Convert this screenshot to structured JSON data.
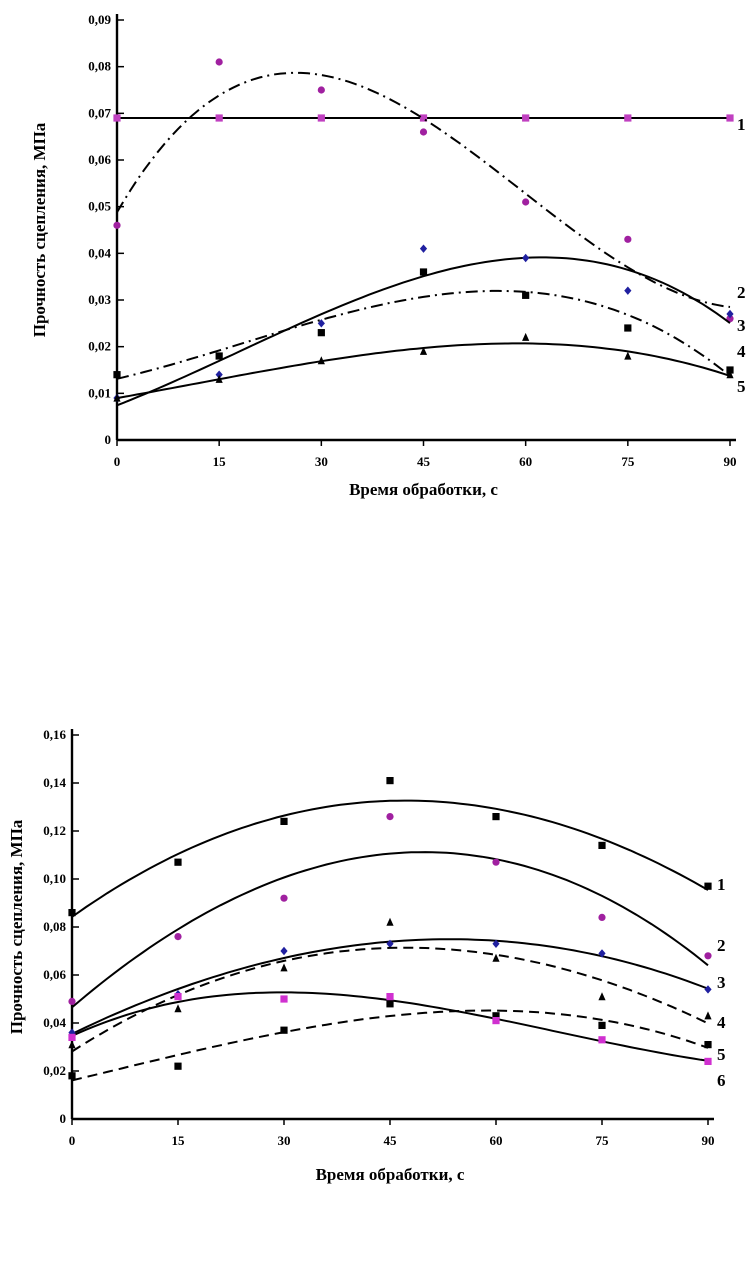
{
  "chart_data": [
    {
      "type": "scatter",
      "title": "",
      "xlabel": "Время обработки, с",
      "ylabel": "Прочность сцепления, МПа",
      "xlim": [
        0,
        90
      ],
      "ylim": [
        0,
        0.09
      ],
      "x_ticks": [
        "0",
        "15",
        "30",
        "45",
        "60",
        "75",
        "90"
      ],
      "y_ticks": [
        "0",
        "0,01",
        "0,02",
        "0,03",
        "0,04",
        "0,05",
        "0,06",
        "0,07",
        "0,08",
        "0,09"
      ],
      "grid": false,
      "x": [
        0,
        15,
        30,
        45,
        60,
        75,
        90
      ],
      "series": [
        {
          "name": "1",
          "marker": "square",
          "color": "#c040c0",
          "curve": "solid",
          "values": [
            0.069,
            0.069,
            0.069,
            0.069,
            0.069,
            0.069,
            0.069
          ]
        },
        {
          "name": "2",
          "marker": "circle",
          "color": "#a020a0",
          "curve": "dashdot",
          "values": [
            0.046,
            0.081,
            0.075,
            0.066,
            0.051,
            0.043,
            0.026
          ]
        },
        {
          "name": "3",
          "marker": "diamond",
          "color": "#2020a0",
          "curve": "solid",
          "values": [
            0.009,
            0.014,
            0.025,
            0.041,
            0.039,
            0.032,
            0.027
          ]
        },
        {
          "name": "4",
          "marker": "square",
          "color": "#000000",
          "curve": "dashdot",
          "values": [
            0.014,
            0.018,
            0.023,
            0.036,
            0.031,
            0.024,
            0.015
          ]
        },
        {
          "name": "5",
          "marker": "triangle",
          "color": "#000000",
          "curve": "solid",
          "values": [
            0.009,
            0.013,
            0.017,
            0.019,
            0.022,
            0.018,
            0.014
          ]
        }
      ]
    },
    {
      "type": "scatter",
      "title": "",
      "xlabel": "Время обработки, с",
      "ylabel": "Прочность сцепления, МПа",
      "xlim": [
        0,
        90
      ],
      "ylim": [
        0,
        0.16
      ],
      "x_ticks": [
        "0",
        "15",
        "30",
        "45",
        "60",
        "75",
        "90"
      ],
      "y_ticks": [
        "0",
        "0,02",
        "0,04",
        "0,06",
        "0,08",
        "0,10",
        "0,12",
        "0,14",
        "0,16"
      ],
      "grid": false,
      "x": [
        0,
        15,
        30,
        45,
        60,
        75,
        90
      ],
      "series": [
        {
          "name": "1",
          "marker": "square",
          "color": "#000000",
          "curve": "solid",
          "values": [
            0.086,
            0.107,
            0.124,
            0.141,
            0.126,
            0.114,
            0.097
          ]
        },
        {
          "name": "2",
          "marker": "circle",
          "color": "#a020a0",
          "curve": "solid",
          "values": [
            0.049,
            0.076,
            0.092,
            0.126,
            0.107,
            0.084,
            0.068
          ]
        },
        {
          "name": "3",
          "marker": "diamond",
          "color": "#2020a0",
          "curve": "solid",
          "values": [
            0.036,
            0.052,
            0.07,
            0.073,
            0.073,
            0.069,
            0.054
          ]
        },
        {
          "name": "4",
          "marker": "triangle",
          "color": "#000000",
          "curve": "dashed",
          "values": [
            0.031,
            0.046,
            0.063,
            0.082,
            0.067,
            0.051,
            0.043
          ]
        },
        {
          "name": "5",
          "marker": "square",
          "color": "#000000",
          "curve": "dashed",
          "values": [
            0.018,
            0.022,
            0.037,
            0.048,
            0.043,
            0.039,
            0.031
          ]
        },
        {
          "name": "6",
          "marker": "square",
          "color": "#d030d0",
          "curve": "solid",
          "values": [
            0.034,
            0.051,
            0.05,
            0.051,
            0.041,
            0.033,
            0.024
          ]
        }
      ]
    }
  ]
}
